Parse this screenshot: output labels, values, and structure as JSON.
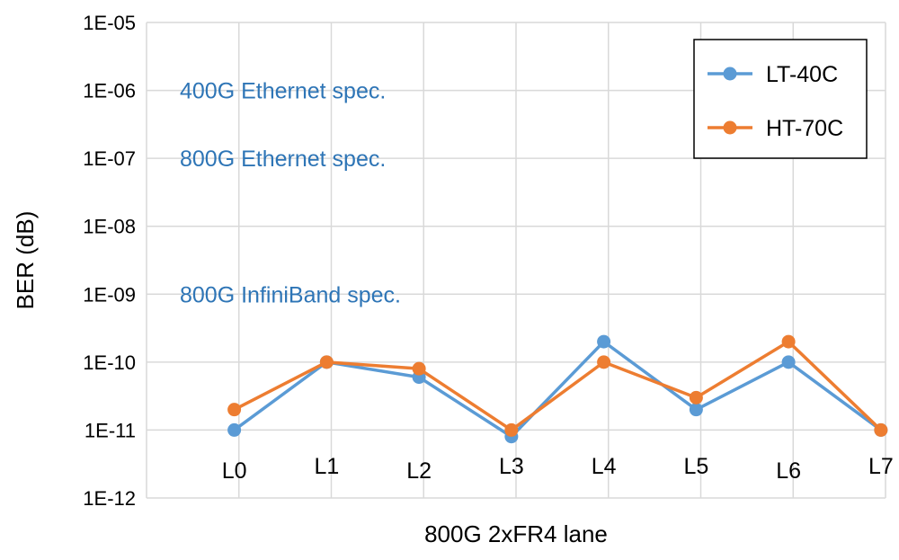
{
  "chart_data": {
    "type": "line",
    "title": "",
    "xlabel": "800G 2xFR4 lane",
    "ylabel": "BER (dB)",
    "yscale": "log",
    "ylim": [
      1e-12,
      1e-05
    ],
    "y_tick_labels": [
      "1E-12",
      "1E-11",
      "1E-10",
      "1E-09",
      "1E-08",
      "1E-07",
      "1E-06",
      "1E-05"
    ],
    "y_tick_values": [
      1e-12,
      1e-11,
      1e-10,
      1e-09,
      1e-08,
      1e-07,
      1e-06,
      1e-05
    ],
    "categories": [
      "L0",
      "L1",
      "L2",
      "L3",
      "L4",
      "L5",
      "L6",
      "L7"
    ],
    "grid": true,
    "legend_position": "top-right",
    "series": [
      {
        "name": "LT-40C",
        "color": "#5b9bd5",
        "values": [
          1e-11,
          1e-10,
          6e-11,
          8e-12,
          2e-10,
          2e-11,
          1e-10,
          1e-11
        ]
      },
      {
        "name": "HT-70C",
        "color": "#ed7d31",
        "values": [
          2e-11,
          1e-10,
          8e-11,
          1e-11,
          1e-10,
          3e-11,
          2e-10,
          1e-11
        ]
      }
    ],
    "annotations": [
      {
        "text": "400G Ethernet spec.",
        "y": 1e-06,
        "color": "#2e75b6"
      },
      {
        "text": "800G Ethernet spec.",
        "y": 1e-07,
        "color": "#2e75b6"
      },
      {
        "text": "800G InfiniBand spec.",
        "y": 1e-09,
        "color": "#2e75b6"
      }
    ]
  }
}
